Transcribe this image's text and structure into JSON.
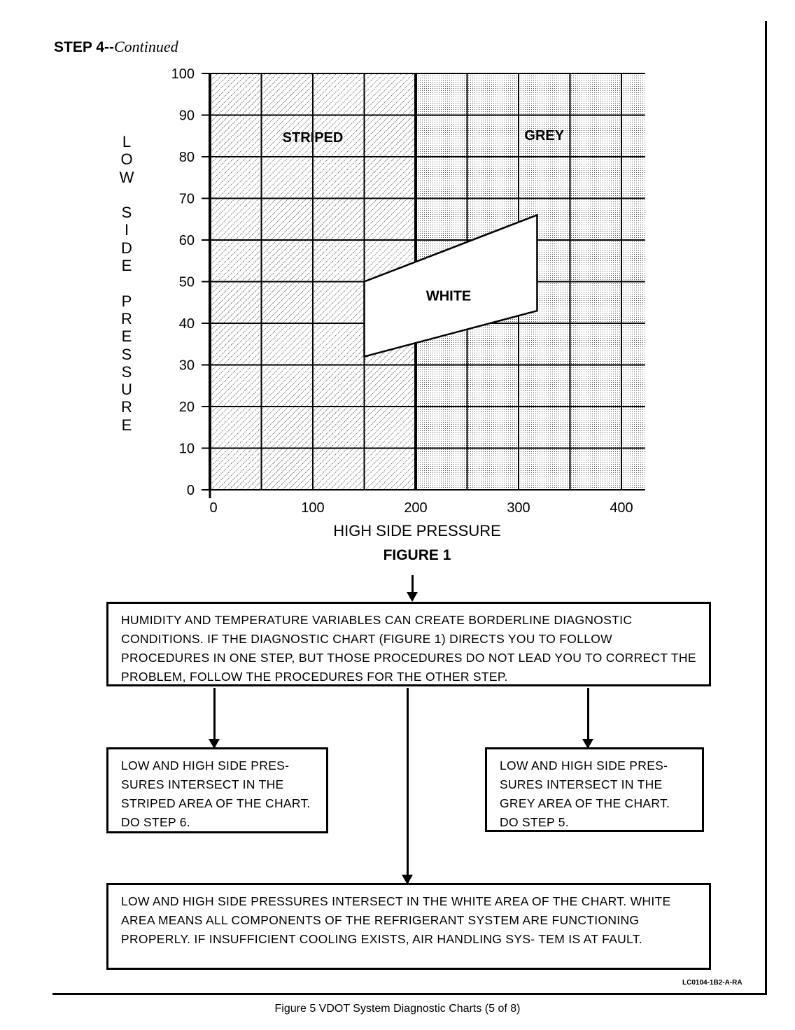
{
  "header": {
    "step": "STEP 4--",
    "continued": "Continued"
  },
  "chart_data": {
    "type": "region-diagram",
    "title": "FIGURE 1",
    "xlabel": "HIGH SIDE PRESSURE",
    "ylabel": "LOW SIDE PRESSURE",
    "xlim": [
      0,
      423
    ],
    "ylim": [
      0,
      100
    ],
    "x_ticks": [
      0,
      100,
      200,
      300,
      400
    ],
    "y_ticks": [
      0,
      10,
      20,
      30,
      40,
      50,
      60,
      70,
      80,
      90,
      100
    ],
    "grid": true,
    "regions": [
      {
        "name": "STRIPED",
        "x_range": [
          0,
          200
        ],
        "fill": "hatched"
      },
      {
        "name": "GREY",
        "x_range": [
          200,
          423
        ],
        "fill": "dotted"
      },
      {
        "name": "WHITE",
        "polygon": [
          [
            150,
            32
          ],
          [
            150,
            50
          ],
          [
            318,
            66
          ],
          [
            318,
            43
          ]
        ],
        "fill": "white"
      }
    ]
  },
  "boxes": {
    "intro": "HUMIDITY AND TEMPERATURE VARIABLES CAN CREATE BORDERLINE DIAGNOSTIC CONDITIONS. IF THE DIAGNOSTIC CHART (FIGURE 1) DIRECTS YOU TO FOLLOW PROCEDURES IN ONE STEP, BUT THOSE PROCEDURES DO NOT LEAD YOU TO CORRECT THE PROBLEM, FOLLOW THE PROCEDURES FOR THE OTHER STEP.",
    "striped": "LOW AND HIGH SIDE PRES- SURES INTERSECT IN THE STRIPED AREA OF THE CHART. DO STEP 6.",
    "grey": "LOW AND HIGH SIDE PRES- SURES INTERSECT IN THE GREY AREA OF THE CHART. DO STEP 5.",
    "white": "LOW AND HIGH SIDE PRESSURES INTERSECT IN THE WHITE AREA OF THE CHART. WHITE AREA MEANS ALL COMPONENTS OF THE REFRIGERANT SYSTEM ARE FUNCTIONING PROPERLY. IF INSUFFICIENT COOLING EXISTS, AIR HANDLING SYS- TEM IS AT FAULT."
  },
  "footer": {
    "code": "LC0104-1B2-A-RA",
    "caption": "Figure 5 VDOT System Diagnostic Charts (5 of 8)"
  }
}
